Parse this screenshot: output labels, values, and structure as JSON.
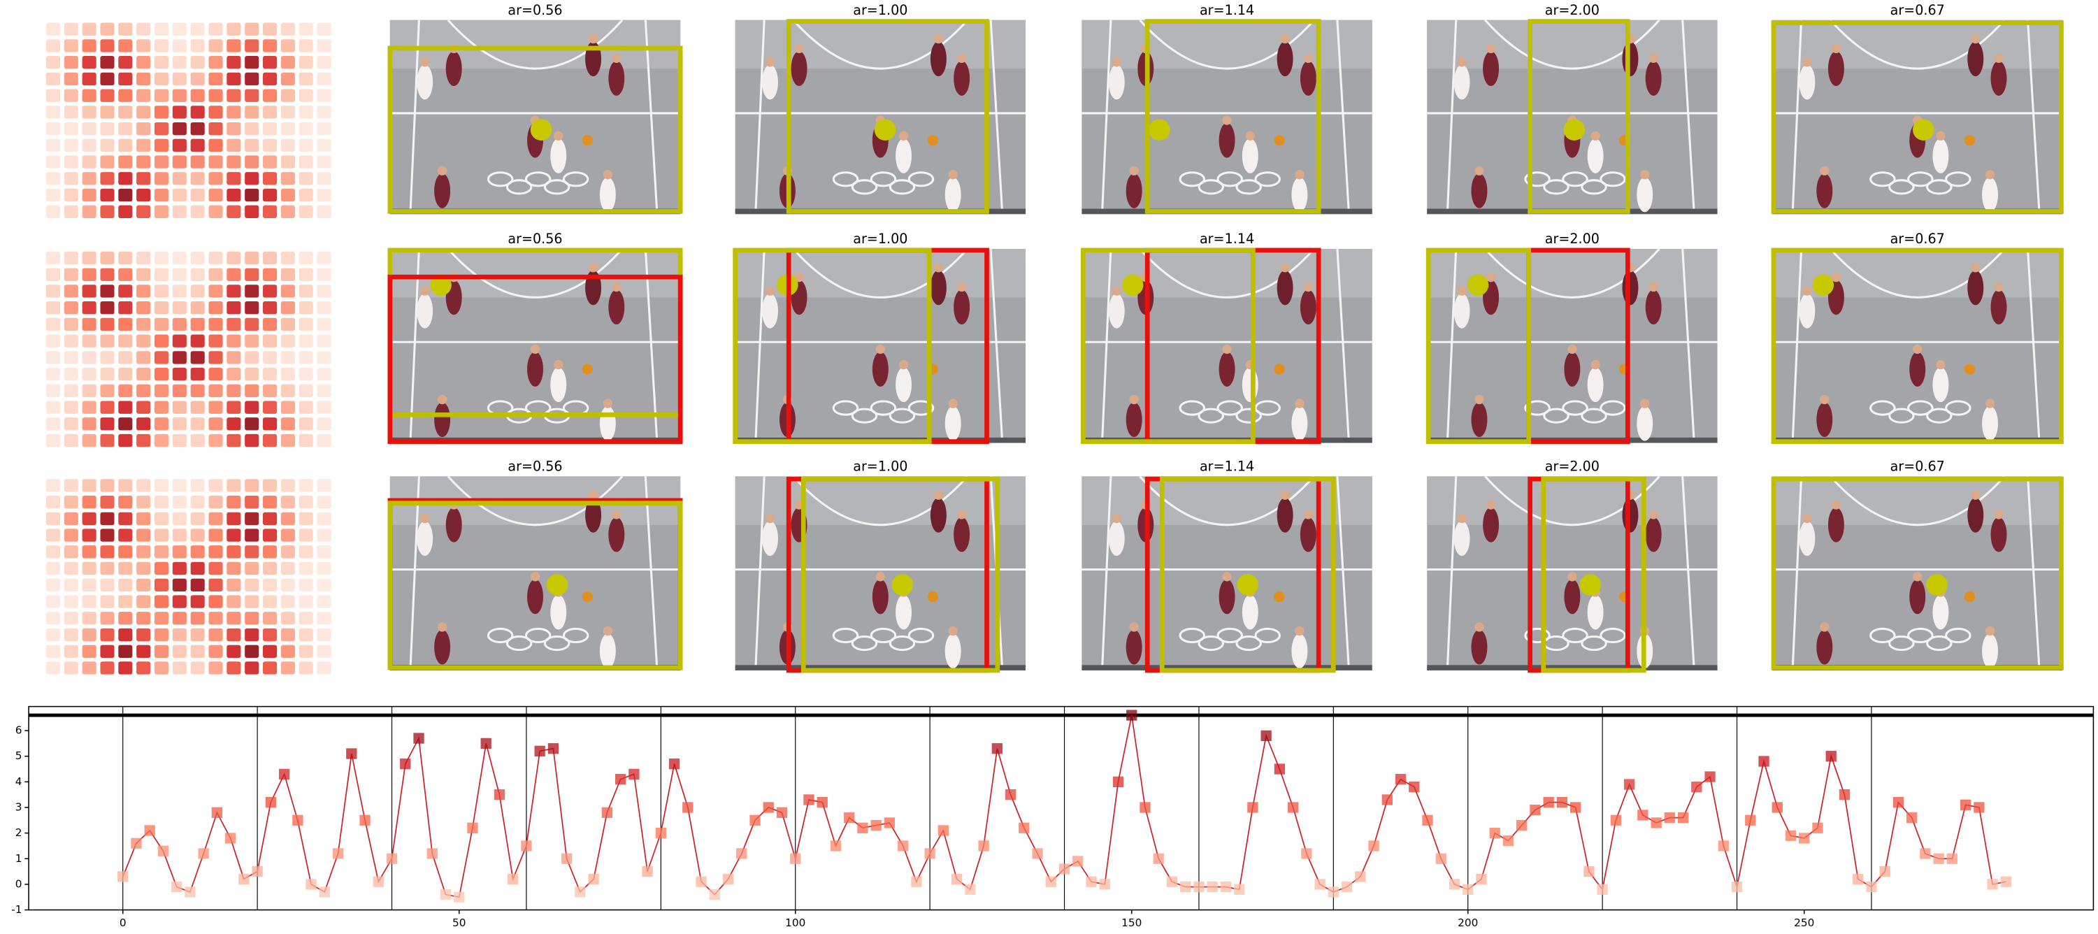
{
  "panel_rows": [
    {
      "titles": [
        "ar=0.56",
        "ar=1.00",
        "ar=1.14",
        "ar=2.00",
        "ar=0.67"
      ]
    },
    {
      "titles": [
        "ar=0.56",
        "ar=1.00",
        "ar=1.14",
        "ar=2.00",
        "ar=0.67"
      ]
    },
    {
      "titles": [
        "ar=0.56",
        "ar=1.00",
        "ar=1.14",
        "ar=2.00",
        "ar=0.67"
      ]
    }
  ],
  "chart_data": {
    "type": "line",
    "x": [
      0,
      2,
      4,
      6,
      8,
      10,
      12,
      14,
      16,
      18,
      20,
      22,
      24,
      26,
      28,
      30,
      32,
      34,
      36,
      38,
      40,
      42,
      44,
      46,
      48,
      50,
      52,
      54,
      56,
      58,
      60,
      62,
      64,
      66,
      68,
      70,
      72,
      74,
      76,
      78,
      80,
      82,
      84,
      86,
      88,
      90,
      92,
      94,
      96,
      98,
      100,
      102,
      104,
      106,
      108,
      110,
      112,
      114,
      116,
      118,
      120,
      122,
      124,
      126,
      128,
      130,
      132,
      134,
      136,
      138,
      140,
      142,
      144,
      146,
      148,
      150,
      152,
      154,
      156,
      158,
      160,
      162,
      164,
      166,
      168,
      170,
      172,
      174,
      176,
      178,
      180,
      182,
      184,
      186,
      188,
      190,
      192,
      194,
      196,
      198,
      200,
      202,
      204,
      206,
      208,
      210,
      212,
      214,
      216,
      218,
      220,
      222,
      224,
      226,
      228,
      230,
      232,
      234,
      236,
      238,
      240,
      242,
      244,
      246,
      248,
      250,
      252,
      254,
      256,
      258,
      260,
      262,
      264,
      266,
      268,
      270,
      272,
      274,
      276,
      278,
      280
    ],
    "series": [
      {
        "color": "#c8232c",
        "values": [
          0.3,
          1.6,
          2.1,
          1.3,
          -0.1,
          -0.3,
          1.2,
          2.8,
          1.8,
          0.2,
          0.5,
          3.2,
          4.3,
          2.5,
          0.0,
          -0.3,
          1.2,
          5.1,
          2.5,
          0.1,
          1.0,
          4.7,
          5.7,
          1.2,
          -0.4,
          -0.5,
          2.2,
          5.5,
          3.5,
          0.2,
          1.5,
          5.2,
          5.3,
          1.0,
          -0.3,
          0.2,
          2.8,
          4.1,
          4.3,
          0.5,
          2.0,
          4.7,
          3.0,
          0.1,
          -0.4,
          0.2,
          1.2,
          2.5,
          3.0,
          2.8,
          1.0,
          3.3,
          3.2,
          1.5,
          2.6,
          2.2,
          2.3,
          2.4,
          1.5,
          0.1,
          1.2,
          2.1,
          0.2,
          -0.2,
          1.5,
          5.3,
          3.5,
          2.2,
          1.2,
          0.1,
          0.6,
          0.9,
          0.1,
          0.0,
          4.0,
          6.6,
          3.0,
          1.0,
          0.1,
          -0.1,
          -0.1,
          -0.1,
          -0.1,
          -0.2,
          3.0,
          5.8,
          4.5,
          3.0,
          1.2,
          0.0,
          -0.3,
          -0.1,
          0.3,
          1.5,
          3.3,
          4.1,
          3.8,
          2.5,
          1.0,
          0.0,
          -0.2,
          0.2,
          2.0,
          1.7,
          2.3,
          2.9,
          3.2,
          3.2,
          3.0,
          0.5,
          -0.2,
          2.5,
          3.9,
          2.7,
          2.4,
          2.6,
          2.6,
          3.8,
          4.2,
          1.5,
          -0.1,
          2.5,
          4.8,
          3.0,
          1.9,
          1.8,
          2.2,
          5.0,
          3.5,
          0.2,
          -0.1,
          0.5,
          3.2,
          2.6,
          1.2,
          1.0,
          1.0,
          3.1,
          3.0,
          0.0,
          0.1
        ]
      }
    ],
    "marker_colormap": "Reds",
    "xlim": [
      -14,
      293
    ],
    "ylim": [
      -1,
      6.94
    ],
    "xticks": [
      0,
      50,
      100,
      150,
      200,
      250
    ],
    "yticks": [
      -1,
      0,
      1,
      2,
      3,
      4,
      5,
      6
    ],
    "vlines": [
      0,
      20,
      40,
      60,
      80,
      100,
      120,
      140,
      160,
      180,
      200,
      220,
      240,
      260
    ]
  }
}
